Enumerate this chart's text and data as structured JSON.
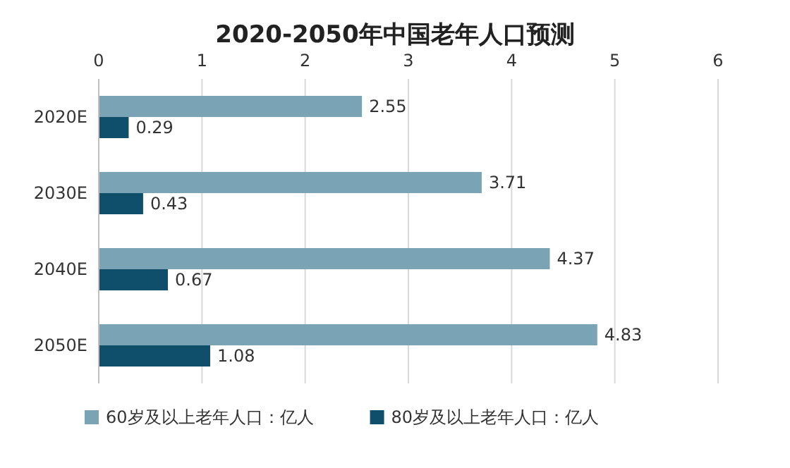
{
  "chart_data": {
    "type": "bar",
    "orientation": "horizontal",
    "title": "2020-2050年中国老年人口预测",
    "categories": [
      "2020E",
      "2030E",
      "2040E",
      "2050E"
    ],
    "series": [
      {
        "name": "60岁及以上老年人口：亿人",
        "color": "#7aa3b6",
        "values": [
          2.55,
          3.71,
          4.37,
          4.83
        ]
      },
      {
        "name": "80岁及以上老年人口：亿人",
        "color": "#0f4f6b",
        "values": [
          0.29,
          0.43,
          0.67,
          1.08
        ]
      }
    ],
    "xlim": [
      0,
      6
    ],
    "xticks": [
      0,
      1,
      2,
      3,
      4,
      5,
      6
    ],
    "grid": "x",
    "legend": "bottom",
    "data_labels": true
  }
}
